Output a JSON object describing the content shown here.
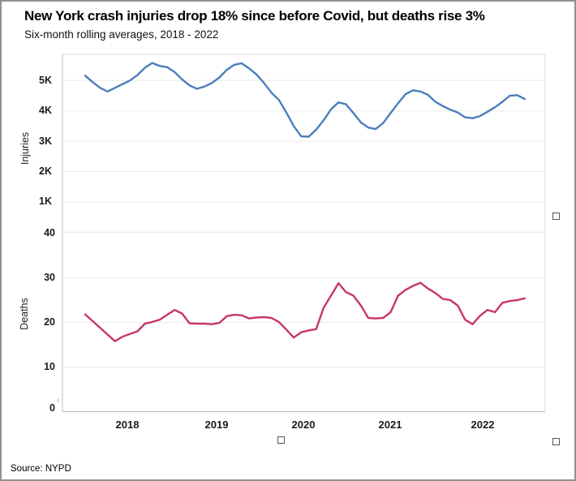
{
  "header": {
    "title": "New York crash injuries drop 18% since before Covid, but deaths rise 3%",
    "subtitle": "Six-month rolling averages, 2018 - 2022"
  },
  "source": "Source: NYPD",
  "x_axis": {
    "labels": [
      "2018",
      "2019",
      "2020",
      "2021",
      "2022"
    ]
  },
  "chart_data": [
    {
      "type": "line",
      "name": "injuries",
      "ylabel": "Injuries",
      "color": "#4a7ebb",
      "yticks": [
        "5K",
        "4K",
        "3K",
        "2K",
        "1K"
      ],
      "ytick_values": [
        5000,
        4000,
        3000,
        2000,
        1000
      ],
      "ylim": [
        0,
        5860
      ],
      "grid": "horizontal-light",
      "legend": "none",
      "x_span_years": [
        2018,
        2022
      ],
      "values": [
        5160,
        4950,
        4760,
        4640,
        4760,
        4880,
        5000,
        5180,
        5420,
        5580,
        5480,
        5440,
        5280,
        5040,
        4840,
        4730,
        4800,
        4920,
        5100,
        5350,
        5520,
        5570,
        5400,
        5200,
        4920,
        4600,
        4360,
        3950,
        3500,
        3160,
        3150,
        3380,
        3690,
        4050,
        4280,
        4220,
        3930,
        3620,
        3450,
        3400,
        3600,
        3930,
        4250,
        4550,
        4680,
        4640,
        4530,
        4300,
        4160,
        4040,
        3950,
        3790,
        3760,
        3830,
        3970,
        4120,
        4300,
        4500,
        4520,
        4390
      ]
    },
    {
      "type": "line",
      "name": "deaths",
      "ylabel": "Deaths",
      "color": "#c8375f",
      "yticks": [
        "40",
        "30",
        "20",
        "10",
        "0"
      ],
      "ytick_values": [
        40,
        30,
        20,
        10,
        0
      ],
      "ylim": [
        0,
        40
      ],
      "grid": "horizontal-light",
      "legend": "none",
      "x_span_years": [
        2018,
        2022
      ],
      "values": [
        21.8,
        20.3,
        18.8,
        17.3,
        15.8,
        16.8,
        17.4,
        18.0,
        19.7,
        20.1,
        20.6,
        21.7,
        22.8,
        22.0,
        19.8,
        19.7,
        19.7,
        19.6,
        19.9,
        21.4,
        21.7,
        21.6,
        20.9,
        21.1,
        21.2,
        21.0,
        20.1,
        18.4,
        16.6,
        17.8,
        18.2,
        18.5,
        23.3,
        26.0,
        28.8,
        26.8,
        26.0,
        23.8,
        21.0,
        20.9,
        21.0,
        22.3,
        26.0,
        27.3,
        28.2,
        28.9,
        27.6,
        26.6,
        25.3,
        25.0,
        23.8,
        20.6,
        19.6,
        21.5,
        22.8,
        22.3,
        24.4,
        24.8,
        25.0,
        25.4
      ]
    }
  ]
}
